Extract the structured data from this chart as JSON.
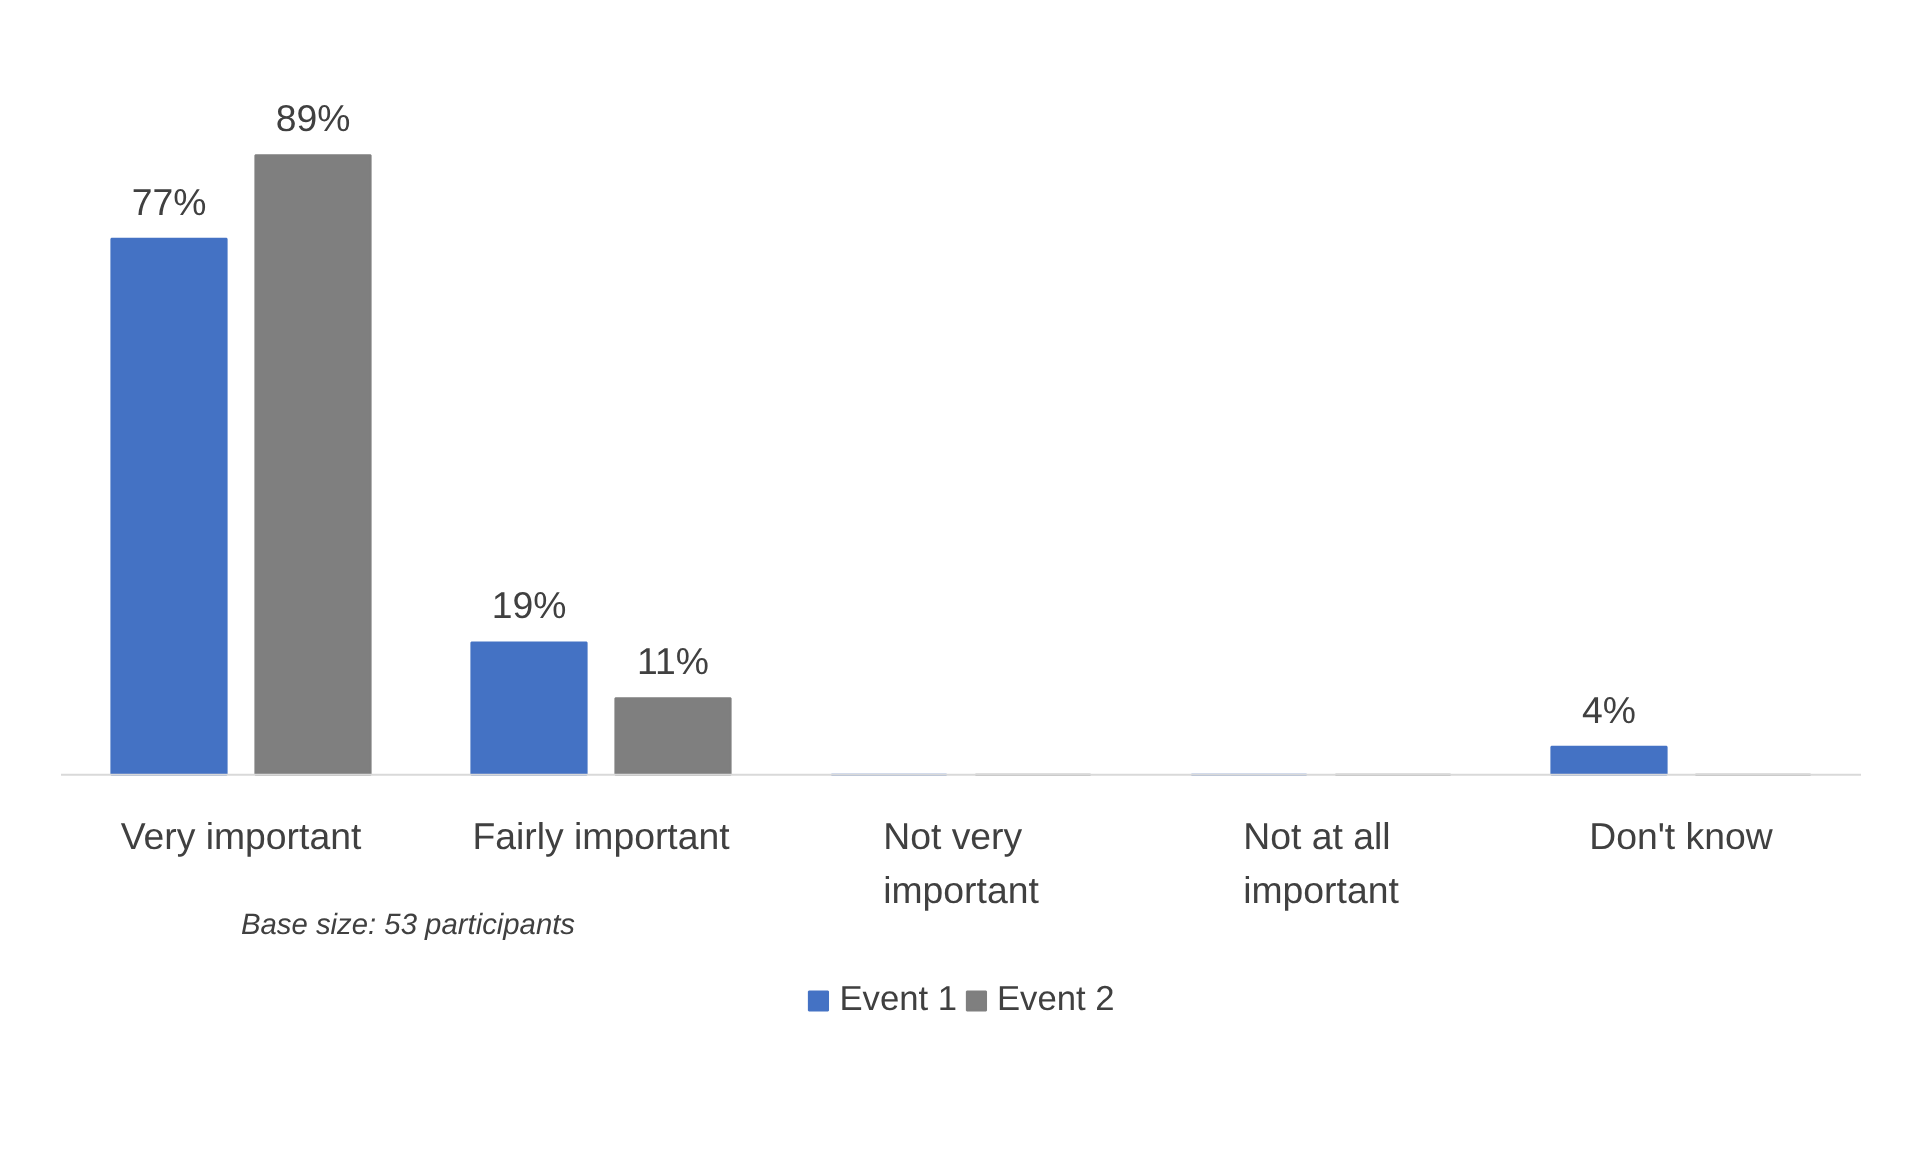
{
  "chart_data": {
    "type": "bar",
    "categories": [
      "Very important",
      "Fairly important",
      "Not very important",
      "Not at all important",
      "Don't know"
    ],
    "series": [
      {
        "name": "Event 1",
        "color": "#4472c4",
        "values": [
          77,
          19,
          0,
          0,
          4
        ],
        "value_labels": [
          "77%",
          "19%",
          null,
          null,
          "4%"
        ]
      },
      {
        "name": "Event 2",
        "color": "#7f7f7f",
        "values": [
          89,
          11,
          0,
          0,
          0
        ],
        "value_labels": [
          "89%",
          "11%",
          null,
          null,
          null
        ]
      }
    ],
    "annotations": [
      "Base size: 53 participants"
    ],
    "grid": false,
    "legend": "bottom"
  }
}
